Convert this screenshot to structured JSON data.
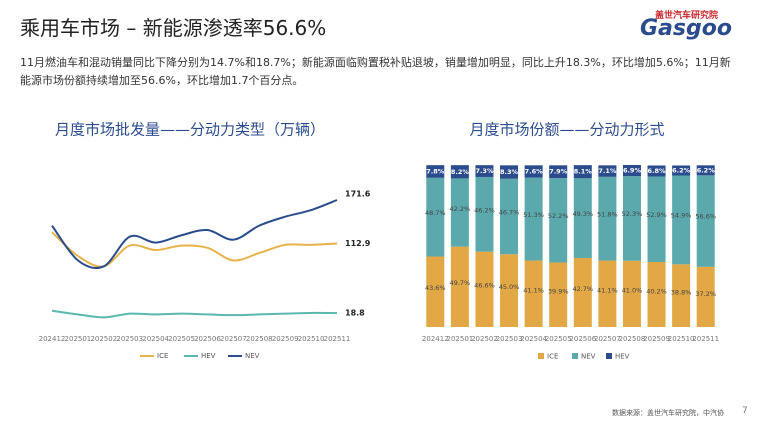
{
  "header": {
    "title": "乘用车市场 – 新能源渗透率56.6%",
    "summary": "11月燃油车和混动销量同比下降分别为14.7%和18.7%；新能源面临购置税补贴退坡，销量增加明显，同比上升18.3%，环比增加5.6%；11月新能源市场份额持续增加至56.6%，环比增加1.7个百分点。"
  },
  "logo": {
    "name": "盖世汽车研究院",
    "brand": "Gasgoo"
  },
  "chart_data": [
    {
      "type": "line",
      "title": "月度市场批发量——分动力类型（万辆）",
      "categories": [
        "202412",
        "202501",
        "202502",
        "202503",
        "202504",
        "202505",
        "202506",
        "202507",
        "202508",
        "202509",
        "202510",
        "202511"
      ],
      "series": [
        {
          "name": "ICE",
          "color": "#e6b44a",
          "values": [
            128,
            96,
            82,
            110,
            104,
            110,
            107,
            90,
            100,
            111,
            111,
            112.9
          ]
        },
        {
          "name": "HEV",
          "color": "#5bb8b0",
          "values": [
            22,
            17,
            13,
            18,
            17,
            18,
            17,
            16,
            17,
            18,
            19,
            18.8
          ]
        },
        {
          "name": "NEV",
          "color": "#2b4c8c",
          "values": [
            137,
            90,
            82,
            122,
            114,
            124,
            131,
            118,
            137,
            149,
            158,
            171.6
          ]
        }
      ]
    },
    {
      "type": "stacked_bar",
      "title": "月度市场份额——分动力形式",
      "categories": [
        "202412",
        "202501",
        "202502",
        "202503",
        "202504",
        "202505",
        "202506",
        "202507",
        "202508",
        "202509",
        "202510",
        "202511"
      ],
      "series": [
        {
          "name": "ICE",
          "color": "#e2a846",
          "values": [
            43.6,
            49.7,
            46.6,
            45.0,
            41.1,
            39.9,
            42.7,
            41.1,
            41.0,
            40.2,
            38.8,
            37.2
          ],
          "value_labels": [
            "43.6%",
            "49.7%",
            "46.6%",
            "45.0%",
            "41.1%",
            "39.9%",
            "42.7%",
            "41.1%",
            "41.0%",
            "40.2%",
            "38.8%",
            "37.2%"
          ]
        },
        {
          "name": "NEV",
          "color": "#5ba9ad",
          "values": [
            48.7,
            42.2,
            46.2,
            46.7,
            51.3,
            52.2,
            49.3,
            51.8,
            52.3,
            52.9,
            54.9,
            56.6
          ],
          "value_labels": [
            "48.7%",
            "42.2%",
            "46.2%",
            "46.7%",
            "51.3%",
            "52.2%",
            "49.3%",
            "51.8%",
            "52.3%",
            "52.9%",
            "54.9%",
            "56.6%"
          ]
        },
        {
          "name": "HEV",
          "color": "#2b4c8c",
          "values": [
            7.8,
            8.2,
            7.3,
            8.3,
            7.6,
            7.9,
            8.1,
            7.1,
            6.9,
            6.8,
            6.2,
            6.2
          ],
          "value_labels": [
            "7.8%",
            "8.2%",
            "7.3%",
            "8.3%",
            "7.6%",
            "7.9%",
            "8.1%",
            "7.1%",
            "6.9%",
            "6.8%",
            "6.2%",
            "6.2%"
          ]
        }
      ]
    }
  ],
  "footer": {
    "source": "数据来源：盖世汽车研究院，中汽协",
    "page": "7"
  }
}
